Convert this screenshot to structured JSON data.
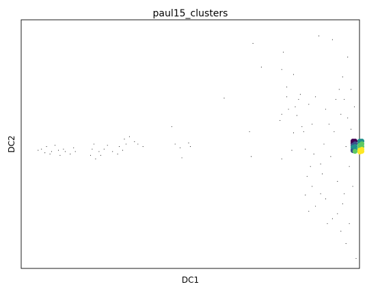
{
  "chart_data": {
    "type": "scatter",
    "title": "paul15_clusters",
    "xlabel": "DC1",
    "ylabel": "DC2",
    "xlim": [
      0,
      1
    ],
    "ylim": [
      0,
      1
    ],
    "grid": false,
    "ticks_shown": false,
    "point_color": "#000000",
    "dense_cluster": {
      "x": 0.995,
      "y": 0.49,
      "colors": [
        "#440154",
        "#3b528b",
        "#21918c",
        "#5ec962",
        "#fde725"
      ]
    },
    "points": [
      [
        0.05,
        0.475
      ],
      [
        0.06,
        0.48
      ],
      [
        0.07,
        0.465
      ],
      [
        0.075,
        0.49
      ],
      [
        0.085,
        0.46
      ],
      [
        0.09,
        0.47
      ],
      [
        0.1,
        0.495
      ],
      [
        0.11,
        0.475
      ],
      [
        0.115,
        0.455
      ],
      [
        0.125,
        0.48
      ],
      [
        0.13,
        0.47
      ],
      [
        0.145,
        0.46
      ],
      [
        0.155,
        0.485
      ],
      [
        0.16,
        0.47
      ],
      [
        0.205,
        0.455
      ],
      [
        0.21,
        0.48
      ],
      [
        0.215,
        0.5
      ],
      [
        0.22,
        0.44
      ],
      [
        0.23,
        0.47
      ],
      [
        0.235,
        0.455
      ],
      [
        0.245,
        0.48
      ],
      [
        0.255,
        0.495
      ],
      [
        0.27,
        0.47
      ],
      [
        0.285,
        0.46
      ],
      [
        0.29,
        0.49
      ],
      [
        0.3,
        0.475
      ],
      [
        0.305,
        0.52
      ],
      [
        0.31,
        0.5
      ],
      [
        0.32,
        0.53
      ],
      [
        0.335,
        0.51
      ],
      [
        0.345,
        0.5
      ],
      [
        0.36,
        0.49
      ],
      [
        0.445,
        0.57
      ],
      [
        0.455,
        0.5
      ],
      [
        0.47,
        0.485
      ],
      [
        0.475,
        0.445
      ],
      [
        0.495,
        0.505
      ],
      [
        0.5,
        0.49
      ],
      [
        0.6,
        0.685
      ],
      [
        0.675,
        0.55
      ],
      [
        0.68,
        0.45
      ],
      [
        0.685,
        0.905
      ],
      [
        0.71,
        0.81
      ],
      [
        0.765,
        0.595
      ],
      [
        0.77,
        0.62
      ],
      [
        0.77,
        0.44
      ],
      [
        0.77,
        0.8
      ],
      [
        0.775,
        0.87
      ],
      [
        0.785,
        0.73
      ],
      [
        0.785,
        0.69
      ],
      [
        0.79,
        0.64
      ],
      [
        0.8,
        0.475
      ],
      [
        0.805,
        0.545
      ],
      [
        0.805,
        0.78
      ],
      [
        0.81,
        0.65
      ],
      [
        0.815,
        0.615
      ],
      [
        0.82,
        0.68
      ],
      [
        0.825,
        0.7
      ],
      [
        0.83,
        0.57
      ],
      [
        0.835,
        0.55
      ],
      [
        0.84,
        0.48
      ],
      [
        0.84,
        0.295
      ],
      [
        0.845,
        0.37
      ],
      [
        0.85,
        0.66
      ],
      [
        0.85,
        0.23
      ],
      [
        0.855,
        0.41
      ],
      [
        0.86,
        0.58
      ],
      [
        0.86,
        0.33
      ],
      [
        0.865,
        0.46
      ],
      [
        0.87,
        0.69
      ],
      [
        0.87,
        0.25
      ],
      [
        0.88,
        0.935
      ],
      [
        0.885,
        0.42
      ],
      [
        0.885,
        0.3
      ],
      [
        0.89,
        0.38
      ],
      [
        0.895,
        0.5
      ],
      [
        0.9,
        0.64
      ],
      [
        0.9,
        0.28
      ],
      [
        0.905,
        0.18
      ],
      [
        0.91,
        0.58
      ],
      [
        0.915,
        0.45
      ],
      [
        0.92,
        0.92
      ],
      [
        0.92,
        0.2
      ],
      [
        0.925,
        0.55
      ],
      [
        0.93,
        0.68
      ],
      [
        0.935,
        0.35
      ],
      [
        0.935,
        0.22
      ],
      [
        0.94,
        0.72
      ],
      [
        0.945,
        0.62
      ],
      [
        0.945,
        0.15
      ],
      [
        0.95,
        0.77
      ],
      [
        0.95,
        0.26
      ],
      [
        0.955,
        0.68
      ],
      [
        0.955,
        0.3
      ],
      [
        0.96,
        0.49
      ],
      [
        0.96,
        0.1
      ],
      [
        0.965,
        0.605
      ],
      [
        0.965,
        0.85
      ],
      [
        0.97,
        0.41
      ],
      [
        0.97,
        0.18
      ],
      [
        0.975,
        0.56
      ],
      [
        0.975,
        0.72
      ],
      [
        0.98,
        0.33
      ],
      [
        0.985,
        0.65
      ],
      [
        0.99,
        0.04
      ]
    ]
  }
}
